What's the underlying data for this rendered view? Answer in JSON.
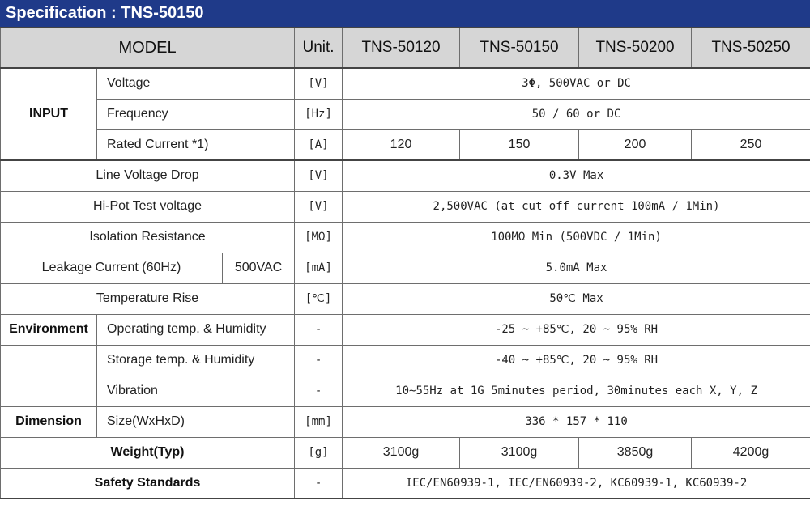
{
  "title": "Specification : TNS-50150",
  "header": {
    "model": "MODEL",
    "unit": "Unit.",
    "models": [
      "TNS-50120",
      "TNS-50150",
      "TNS-50200",
      "TNS-50250"
    ]
  },
  "input": {
    "group": "INPUT",
    "voltage": {
      "label": "Voltage",
      "unit": "[V]",
      "value": "3Φ, 500VAC or DC"
    },
    "frequency": {
      "label": "Frequency",
      "unit": "[Hz]",
      "value": "50 / 60 or DC"
    },
    "rated_current": {
      "label": "Rated Current  *1)",
      "unit": "[A]",
      "values": [
        "120",
        "150",
        "200",
        "250"
      ]
    }
  },
  "line_voltage_drop": {
    "label": "Line Voltage Drop",
    "unit": "[V]",
    "value": "0.3V Max"
  },
  "hipot": {
    "label": "Hi-Pot Test voltage",
    "unit": "[V]",
    "value": "2,500VAC (at cut off current 100mA / 1Min)"
  },
  "isolation": {
    "label": "Isolation Resistance",
    "unit": "[MΩ]",
    "value": "100MΩ Min (500VDC / 1Min)"
  },
  "leakage": {
    "label": "Leakage Current (60Hz)",
    "condition": "500VAC",
    "unit": "[mA]",
    "value": "5.0mA Max"
  },
  "temp_rise": {
    "label": "Temperature Rise",
    "unit": "[℃]",
    "value": "50℃ Max"
  },
  "environment": {
    "group": "Environment",
    "operating": {
      "label": "Operating temp. & Humidity",
      "unit": "-",
      "value": "-25 ~ +85℃,  20 ~ 95% RH"
    },
    "storage": {
      "label": "Storage temp. & Humidity",
      "unit": "-",
      "value": "-40 ~ +85℃,  20 ~ 95% RH"
    },
    "vibration": {
      "label": "Vibration",
      "unit": "-",
      "value": "10~55Hz at 1G 5minutes period, 30minutes each X, Y, Z"
    }
  },
  "dimension": {
    "group": "Dimension",
    "size": {
      "label": "Size(WxHxD)",
      "unit": "[mm]",
      "value": "336 * 157 * 110"
    }
  },
  "weight": {
    "label": "Weight(Typ)",
    "unit": "[g]",
    "values": [
      "3100g",
      "3100g",
      "3850g",
      "4200g"
    ]
  },
  "safety": {
    "label": "Safety Standards",
    "unit": "-",
    "value": "IEC/EN60939-1, IEC/EN60939-2, KC60939-1, KC60939-2"
  }
}
